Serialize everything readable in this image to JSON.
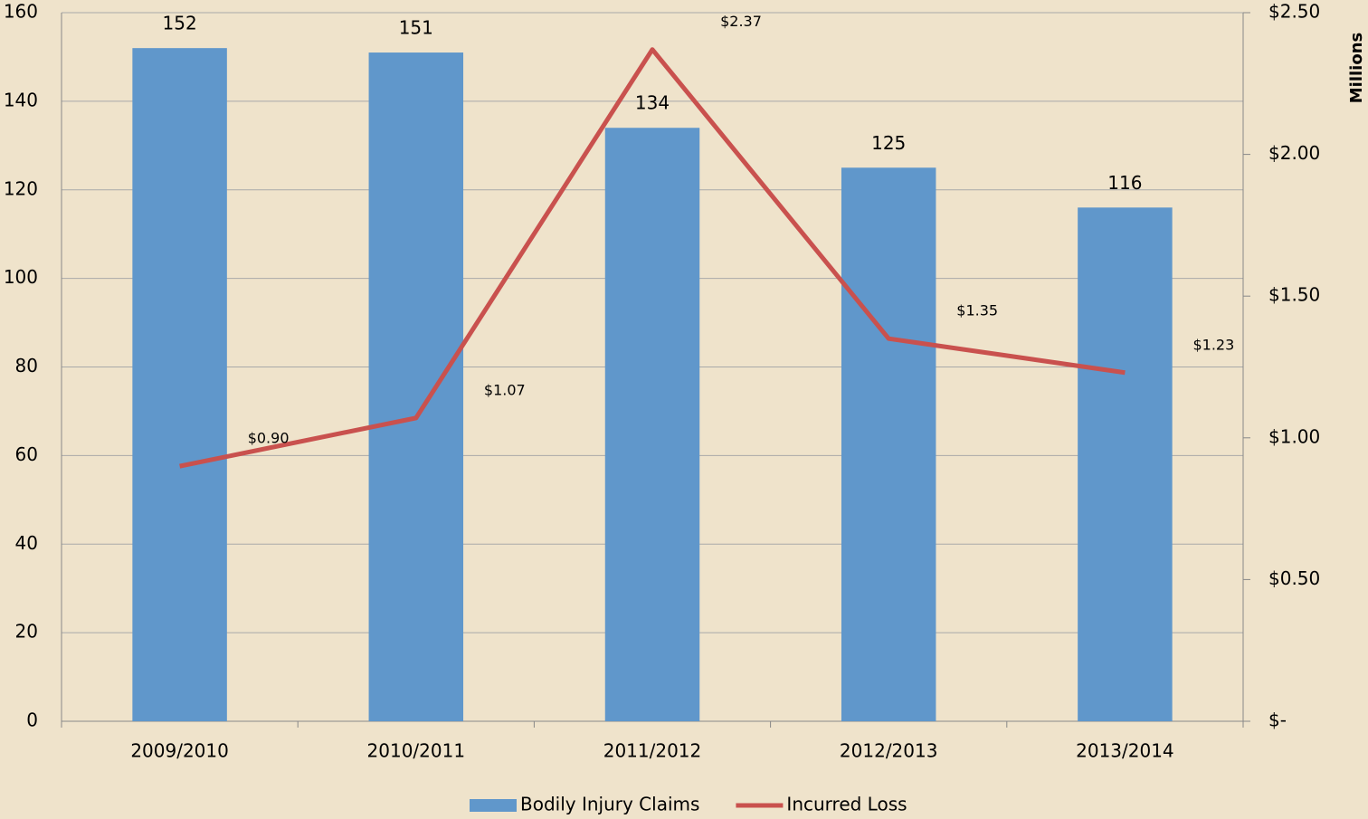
{
  "chart_data": {
    "type": "combo",
    "categories": [
      "2009/2010",
      "2010/2011",
      "2011/2012",
      "2012/2013",
      "2013/2014"
    ],
    "series": [
      {
        "name": "Bodily Injury Claims",
        "type": "bar",
        "color": "#6097cb",
        "values": [
          152,
          151,
          134,
          125,
          116
        ]
      },
      {
        "name": "Incurred Loss",
        "type": "line",
        "axis": "y2",
        "color": "#c9514e",
        "values": [
          0.9,
          1.07,
          2.37,
          1.35,
          1.23
        ],
        "value_labels": [
          "$0.90",
          "$1.07",
          "$2.37",
          "$1.35",
          "$1.23"
        ]
      }
    ],
    "ylim": [
      0,
      160
    ],
    "yticks": [
      0,
      20,
      40,
      60,
      80,
      100,
      120,
      140,
      160
    ],
    "y2lim": [
      0,
      2.5
    ],
    "y2ticks": [
      {
        "value": 0,
        "label": "$-"
      },
      {
        "value": 0.5,
        "label": "$0.50"
      },
      {
        "value": 1,
        "label": "$1.00"
      },
      {
        "value": 1.5,
        "label": "$1.50"
      },
      {
        "value": 2,
        "label": "$2.00"
      },
      {
        "value": 2.5,
        "label": "$2.50"
      }
    ],
    "y2label": "Millions",
    "grid": true,
    "legend": "bottom"
  }
}
